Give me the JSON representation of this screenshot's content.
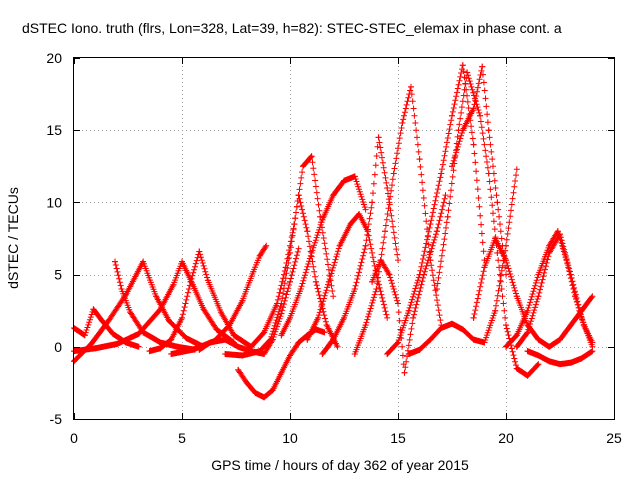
{
  "chart_data": {
    "type": "scatter",
    "title": "dSTEC Iono. truth (flrs, Lon=328, Lat=39, h=82): STEC-STEC_elemax in phase cont. a",
    "xlabel": "GPS time / hours of day 362 of year 2015",
    "ylabel": "dSTEC  / TECUs",
    "xlim": [
      0,
      25
    ],
    "ylim": [
      -5,
      20
    ],
    "x_ticks": [
      "0",
      "5",
      "10",
      "15",
      "20",
      "25"
    ],
    "y_ticks": [
      "-5",
      "0",
      "5",
      "10",
      "15",
      "20"
    ],
    "grid": true,
    "marker": "+",
    "color": "#ff0000",
    "series": [
      {
        "x": [
          0.0,
          0.5,
          0.9,
          1.3,
          1.8,
          2.4,
          3.0
        ],
        "y": [
          1.3,
          0.8,
          2.6,
          1.8,
          0.9,
          0.3,
          0.0
        ]
      },
      {
        "x": [
          0.0,
          0.8,
          1.6,
          2.4,
          3.2,
          3.8,
          4.4,
          5.2,
          6.0
        ],
        "y": [
          -1.0,
          0.2,
          1.8,
          3.6,
          5.9,
          3.5,
          1.8,
          0.6,
          0.0
        ]
      },
      {
        "x": [
          0.0,
          1.0,
          2.0,
          3.0,
          4.0,
          4.6,
          5.0,
          5.5,
          6.0,
          6.6,
          7.4
        ],
        "y": [
          -0.3,
          -0.1,
          0.2,
          0.9,
          2.6,
          4.3,
          5.9,
          4.3,
          2.6,
          1.2,
          0.3
        ]
      },
      {
        "x": [
          1.9,
          2.2,
          2.6,
          3.2,
          4.0,
          4.8,
          5.6
        ],
        "y": [
          5.9,
          4.0,
          2.4,
          1.0,
          0.3,
          0.0,
          -0.2
        ]
      },
      {
        "x": [
          3.5,
          4.0,
          4.5,
          5.0,
          5.4,
          5.8,
          6.2,
          6.8,
          7.4,
          8.2
        ],
        "y": [
          -0.3,
          -0.1,
          0.5,
          2.0,
          4.5,
          6.6,
          4.6,
          2.4,
          0.8,
          0.0
        ]
      },
      {
        "x": [
          4.5,
          5.5,
          6.5,
          7.2,
          7.8,
          8.3,
          8.6,
          8.9
        ],
        "y": [
          -0.5,
          -0.2,
          0.4,
          1.5,
          3.2,
          5.2,
          6.3,
          7.0
        ]
      },
      {
        "x": [
          5.8,
          6.3,
          7.0,
          7.6,
          8.2,
          8.8,
          9.2,
          9.6,
          10.0,
          10.4
        ],
        "y": [
          -0.2,
          0.3,
          0.5,
          0.0,
          -0.3,
          -0.5,
          0.5,
          2.3,
          4.5,
          6.8
        ]
      },
      {
        "x": [
          7.6,
          8.0,
          8.4,
          8.8,
          9.2,
          9.6,
          10.0,
          10.4,
          10.8,
          11.2,
          11.6
        ],
        "y": [
          -1.6,
          -2.5,
          -3.2,
          -3.5,
          -3.0,
          -1.8,
          -0.6,
          0.3,
          0.8,
          1.2,
          1.0
        ]
      },
      {
        "x": [
          7.0,
          7.8,
          8.6,
          9.1,
          9.6,
          10.0,
          10.4,
          10.8,
          11.2,
          11.7,
          12.2
        ],
        "y": [
          -0.5,
          -0.6,
          -0.3,
          0.5,
          3.0,
          6.5,
          10.5,
          8.0,
          4.5,
          1.5,
          0.0
        ]
      },
      {
        "x": [
          8.2,
          8.8,
          9.4,
          9.8,
          10.2,
          10.6,
          11.0,
          11.4,
          12.0
        ],
        "y": [
          0.0,
          1.0,
          3.0,
          5.5,
          8.5,
          12.5,
          13.2,
          9.0,
          3.5
        ]
      },
      {
        "x": [
          9.6,
          10.0,
          10.5,
          11.0,
          11.5,
          12.0,
          12.5,
          13.0,
          13.5
        ],
        "y": [
          0.8,
          2.0,
          4.0,
          6.5,
          8.8,
          10.5,
          11.5,
          11.8,
          9.5
        ]
      },
      {
        "x": [
          10.8,
          11.3,
          11.8,
          12.3,
          12.8,
          13.2,
          13.6,
          14.0,
          14.5
        ],
        "y": [
          0.5,
          2.0,
          4.5,
          7.0,
          8.5,
          9.2,
          8.0,
          5.0,
          2.0
        ]
      },
      {
        "x": [
          11.5,
          12.0,
          12.5,
          13.0,
          13.5,
          13.8,
          14.1,
          14.5,
          15.0
        ],
        "y": [
          -0.5,
          0.5,
          2.0,
          4.0,
          7.0,
          10.0,
          14.5,
          11.0,
          6.0
        ]
      },
      {
        "x": [
          13.0,
          13.5,
          14.0,
          14.4,
          14.8,
          15.2,
          15.6,
          16.0,
          16.5,
          17.0
        ],
        "y": [
          -0.5,
          1.5,
          4.0,
          8.0,
          12.0,
          15.5,
          18.0,
          13.0,
          6.0,
          1.5
        ]
      },
      {
        "x": [
          13.8,
          14.2,
          14.6,
          15.0,
          15.3,
          15.7,
          16.2,
          16.8,
          17.2
        ],
        "y": [
          4.5,
          6.0,
          5.0,
          3.0,
          -1.8,
          2.0,
          5.0,
          8.0,
          10.5
        ]
      },
      {
        "x": [
          14.5,
          15.0,
          15.5,
          16.0,
          16.5,
          17.0,
          17.5,
          18.0,
          18.5,
          19.0
        ],
        "y": [
          -0.5,
          0.3,
          2.5,
          5.0,
          8.5,
          12.0,
          16.0,
          19.5,
          14.0,
          6.0
        ]
      },
      {
        "x": [
          15.5,
          16.0,
          16.5,
          17.0,
          17.5,
          18.0,
          18.5,
          19.0,
          19.5,
          20.0,
          20.5
        ],
        "y": [
          -0.5,
          -0.2,
          0.5,
          1.3,
          1.6,
          1.2,
          0.5,
          0.3,
          2.5,
          7.0,
          12.3
        ]
      },
      {
        "x": [
          16.8,
          17.3,
          17.8,
          18.2,
          18.8,
          19.2,
          19.6,
          20.0,
          20.5,
          21.0,
          21.5
        ],
        "y": [
          4.0,
          9.0,
          15.0,
          19.0,
          16.0,
          12.0,
          6.5,
          1.5,
          -1.5,
          -2.0,
          -1.2
        ]
      },
      {
        "x": [
          17.5,
          18.0,
          18.5,
          18.9,
          19.2,
          19.6,
          20.0
        ],
        "y": [
          12.5,
          15.0,
          16.5,
          19.4,
          15.0,
          10.0,
          5.0
        ]
      },
      {
        "x": [
          18.5,
          19.0,
          19.5,
          20.0,
          20.5,
          21.0,
          21.5,
          22.0,
          22.5,
          23.0,
          23.5,
          24.0
        ],
        "y": [
          2.0,
          5.5,
          7.5,
          6.0,
          3.5,
          1.5,
          0.5,
          0.0,
          0.5,
          1.5,
          2.5,
          3.5
        ]
      },
      {
        "x": [
          20.0,
          20.5,
          21.0,
          21.5,
          22.0,
          22.4,
          22.8,
          23.2,
          23.6,
          24.0
        ],
        "y": [
          0.0,
          0.8,
          2.5,
          5.0,
          7.0,
          8.0,
          6.0,
          3.5,
          1.5,
          0.3
        ]
      },
      {
        "x": [
          20.5,
          21.0,
          21.5,
          22.0,
          22.5,
          23.0,
          23.5,
          24.0
        ],
        "y": [
          0.0,
          1.0,
          3.5,
          6.5,
          7.8,
          5.0,
          2.0,
          0.0
        ]
      },
      {
        "x": [
          21.0,
          21.5,
          22.0,
          22.5,
          23.0,
          23.5,
          24.0
        ],
        "y": [
          -0.3,
          -0.6,
          -1.0,
          -1.2,
          -1.1,
          -0.8,
          -0.3
        ]
      }
    ]
  }
}
